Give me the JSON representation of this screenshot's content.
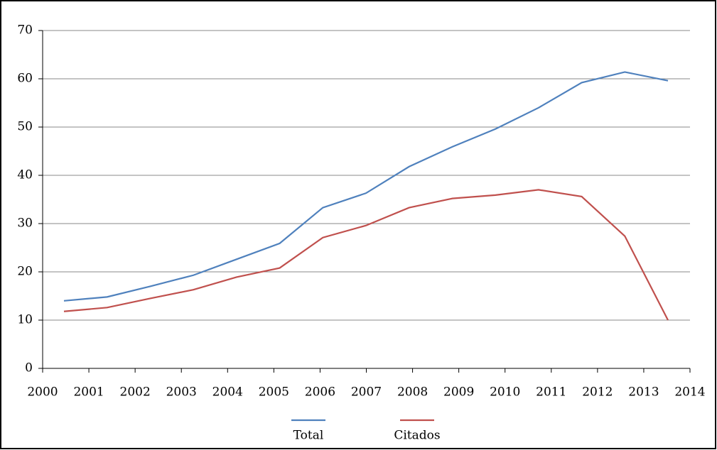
{
  "chart_data": {
    "type": "line",
    "categories": [
      "2000",
      "2001",
      "2002",
      "2003",
      "2004",
      "2005",
      "2006",
      "2007",
      "2008",
      "2009",
      "2010",
      "2011",
      "2012",
      "2013",
      "2014"
    ],
    "series": [
      {
        "name": "Total",
        "color": "#4f81bd",
        "values": [
          14.0,
          14.8,
          17.0,
          19.3,
          22.6,
          25.9,
          33.3,
          36.3,
          41.8,
          45.9,
          49.6,
          54.0,
          59.2,
          61.4,
          59.6
        ]
      },
      {
        "name": "Citados",
        "color": "#c0504d",
        "values": [
          11.8,
          12.6,
          14.5,
          16.3,
          18.9,
          20.8,
          27.1,
          29.6,
          33.3,
          35.2,
          35.9,
          37.0,
          35.6,
          27.4,
          10.0
        ]
      }
    ],
    "ylim": [
      0,
      70
    ],
    "yticks": [
      0,
      10,
      20,
      30,
      40,
      50,
      60,
      70
    ],
    "grid": true,
    "legend": "bottom"
  }
}
